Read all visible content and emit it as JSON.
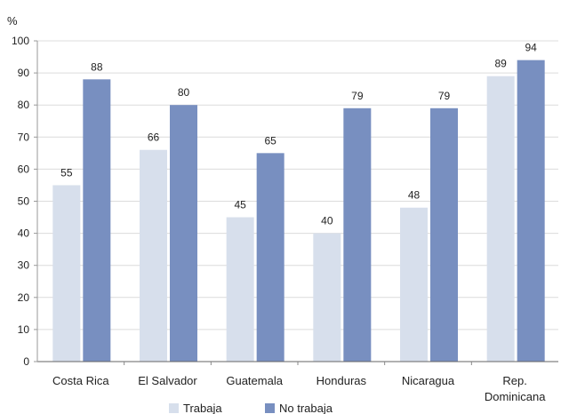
{
  "chart_data": {
    "type": "bar",
    "ylabel": "%",
    "ylim": [
      0,
      100
    ],
    "yticks": [
      0,
      10,
      20,
      30,
      40,
      50,
      60,
      70,
      80,
      90,
      100
    ],
    "grid": true,
    "legend_position": "bottom",
    "categories": [
      [
        "Costa Rica"
      ],
      [
        "El Salvador"
      ],
      [
        "Guatemala"
      ],
      [
        "Honduras"
      ],
      [
        "Nicaragua"
      ],
      [
        "Rep.",
        "Dominicana"
      ]
    ],
    "series": [
      {
        "name": "Trabaja",
        "color": "#d7dfec",
        "values": [
          55,
          66,
          45,
          40,
          48,
          89
        ]
      },
      {
        "name": "No trabaja",
        "color": "#788fc0",
        "values": [
          88,
          80,
          65,
          79,
          79,
          94
        ]
      }
    ]
  }
}
